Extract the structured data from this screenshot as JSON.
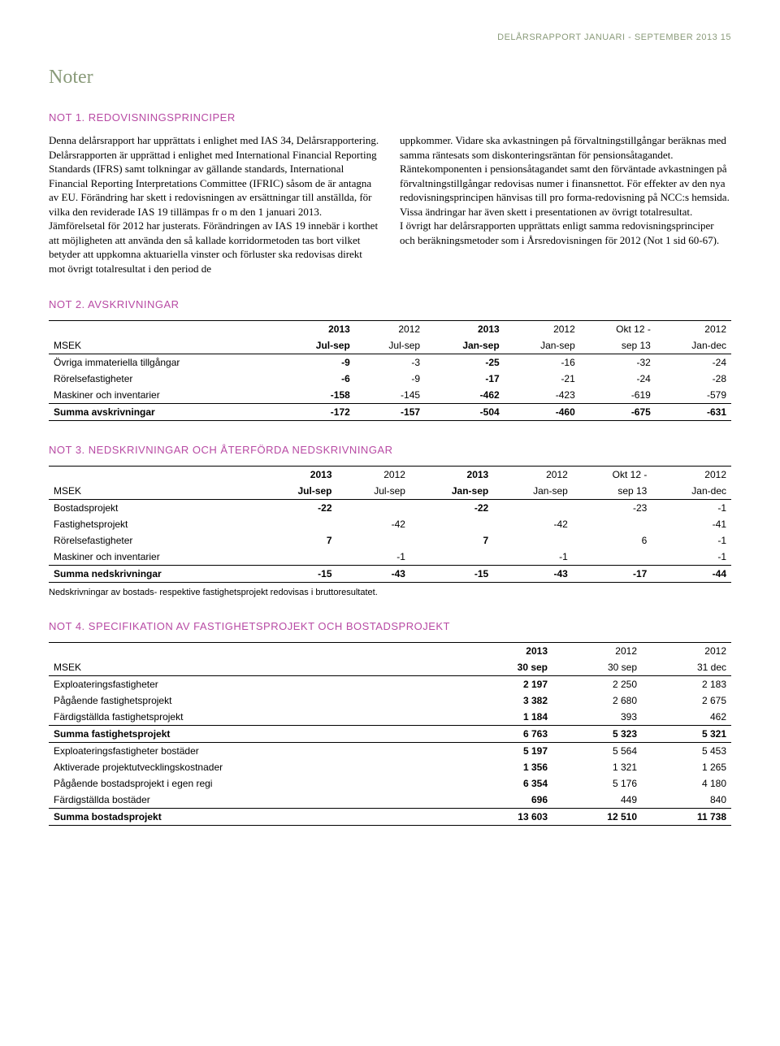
{
  "header": {
    "text": "DELÅRSRAPPORT JANUARI - SEPTEMBER 2013  15"
  },
  "title": "Noter",
  "note1": {
    "heading": "NOT 1. REDOVISNINGSPRINCIPER",
    "left": "Denna delårsrapport har upprättats i enlighet med IAS 34, Delårsrapportering. Delårsrapporten är upprättad i enlighet med International Financial Reporting Standards (IFRS) samt tolkningar av gällande standards, International Financial Reporting Interpretations Committee (IFRIC) såsom de är antagna av EU. Förändring har skett i redovisningen av ersättningar till anställda, för vilka den reviderade IAS 19 tillämpas fr o m den 1 januari 2013. Jämförelsetal för 2012 har justerats. Förändringen av IAS 19 innebär i korthet att möjligheten att använda den så kallade korridormetoden tas bort vilket betyder att uppkomna aktuariella vinster och förluster ska redovisas direkt mot övrigt totalresultat i den period de",
    "right": "uppkommer. Vidare ska avkastningen på förvaltnings­tillgångar beräknas med samma räntesats som diskonteringsräntan för pensionsåtagandet. Räntekomponenten i pensionsåtagandet samt den förväntade avkastningen på förvaltningstillgångar redovisas numer i finansnettot. För effekter av den nya redovisningsprincipen hänvisas till pro forma-redovisning på NCC:s hemsida.\nVissa ändringar har även skett i presentationen av övrigt totalresultat.\nI övrigt har delårsrapporten upprättats enligt samma redovisningsprinciper och beräkningsmetoder som i Årsredovisningen för 2012 (Not 1 sid 60-67)."
  },
  "note2": {
    "heading": "NOT 2. AVSKRIVNINGAR",
    "unit_label": "MSEK",
    "years": [
      "2013",
      "2012",
      "2013",
      "2012",
      "Okt 12 -",
      "2012"
    ],
    "periods": [
      "Jul-sep",
      "Jul-sep",
      "Jan-sep",
      "Jan-sep",
      "sep 13",
      "Jan-dec"
    ],
    "bold_cols": [
      true,
      false,
      true,
      false,
      false,
      false
    ],
    "rows": [
      {
        "label": "Övriga immateriella tillgångar",
        "vals": [
          "-9",
          "-3",
          "-25",
          "-16",
          "-32",
          "-24"
        ]
      },
      {
        "label": "Rörelsefastigheter",
        "vals": [
          "-6",
          "-9",
          "-17",
          "-21",
          "-24",
          "-28"
        ]
      },
      {
        "label": "Maskiner och inventarier",
        "vals": [
          "-158",
          "-145",
          "-462",
          "-423",
          "-619",
          "-579"
        ]
      }
    ],
    "total": {
      "label": "Summa avskrivningar",
      "vals": [
        "-172",
        "-157",
        "-504",
        "-460",
        "-675",
        "-631"
      ]
    }
  },
  "note3": {
    "heading": "NOT 3. NEDSKRIVNINGAR OCH ÅTERFÖRDA NEDSKRIVNINGAR",
    "unit_label": "MSEK",
    "years": [
      "2013",
      "2012",
      "2013",
      "2012",
      "Okt 12 -",
      "2012"
    ],
    "periods": [
      "Jul-sep",
      "Jul-sep",
      "Jan-sep",
      "Jan-sep",
      "sep 13",
      "Jan-dec"
    ],
    "bold_cols": [
      true,
      false,
      true,
      false,
      false,
      false
    ],
    "rows": [
      {
        "label": "Bostadsprojekt",
        "vals": [
          "-22",
          "",
          "-22",
          "",
          "-23",
          "-1"
        ]
      },
      {
        "label": "Fastighetsprojekt",
        "vals": [
          "",
          "-42",
          "",
          "-42",
          "",
          "-41"
        ]
      },
      {
        "label": "Rörelsefastigheter",
        "vals": [
          "7",
          "",
          "7",
          "",
          "6",
          "-1"
        ]
      },
      {
        "label": "Maskiner och inventarier",
        "vals": [
          "",
          "-1",
          "",
          "-1",
          "",
          "-1"
        ]
      }
    ],
    "total": {
      "label": "Summa nedskrivningar",
      "vals": [
        "-15",
        "-43",
        "-15",
        "-43",
        "-17",
        "-44"
      ]
    },
    "footnote": "Nedskrivningar av bostads- respektive fastighetsprojekt redovisas i bruttoresultatet."
  },
  "note4": {
    "heading": "NOT 4. SPECIFIKATION AV FASTIGHETSPROJEKT OCH BOSTADSPROJEKT",
    "unit_label": "MSEK",
    "years": [
      "2013",
      "2012",
      "2012"
    ],
    "periods": [
      "30 sep",
      "30 sep",
      "31 dec"
    ],
    "bold_cols": [
      true,
      false,
      false
    ],
    "section1": {
      "rows": [
        {
          "label": "Exploateringsfastigheter",
          "vals": [
            "2 197",
            "2 250",
            "2 183"
          ]
        },
        {
          "label": "Pågående fastighetsprojekt",
          "vals": [
            "3 382",
            "2 680",
            "2 675"
          ]
        },
        {
          "label": "Färdigställda fastighetsprojekt",
          "vals": [
            "1 184",
            "393",
            "462"
          ]
        }
      ],
      "total": {
        "label": "Summa fastighetsprojekt",
        "vals": [
          "6 763",
          "5 323",
          "5 321"
        ]
      }
    },
    "section2": {
      "rows": [
        {
          "label": "Exploateringsfastigheter bostäder",
          "vals": [
            "5 197",
            "5 564",
            "5 453"
          ]
        },
        {
          "label": "Aktiverade projektutvecklingskostnader",
          "vals": [
            "1 356",
            "1 321",
            "1 265"
          ]
        },
        {
          "label": "Pågående bostadsprojekt i egen regi",
          "vals": [
            "6 354",
            "5 176",
            "4 180"
          ]
        },
        {
          "label": "Färdigställda bostäder",
          "vals": [
            "696",
            "449",
            "840"
          ]
        }
      ],
      "total": {
        "label": "Summa bostadsprojekt",
        "vals": [
          "13 603",
          "12 510",
          "11 738"
        ]
      }
    }
  }
}
